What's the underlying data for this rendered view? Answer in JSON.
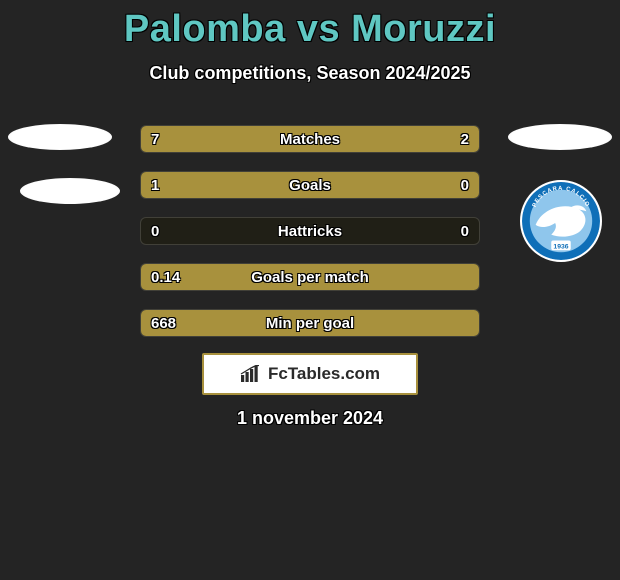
{
  "title": "Palomba vs Moruzzi",
  "subtitle": "Club competitions, Season 2024/2025",
  "date": "1 november 2024",
  "colors": {
    "accent": "#5fc7c2",
    "left_fill": "#a8913d",
    "right_fill": "#a8913d",
    "bar_bg": "#201f16",
    "brand_border": "#a8913d"
  },
  "brand": {
    "text": "FcTables.com",
    "icon_name": "barchart-icon"
  },
  "clubs": {
    "right_crest": {
      "name": "Pescara Calcio",
      "text_top": "PESCARA CALCIO",
      "primary": "#0f6fb8",
      "secondary": "#8fc6ec",
      "year": "1936"
    }
  },
  "stats": [
    {
      "label": "Matches",
      "left_val": "7",
      "right_val": "2",
      "left_pct": 76.5,
      "right_pct": 23.5
    },
    {
      "label": "Goals",
      "left_val": "1",
      "right_val": "0",
      "left_pct": 79,
      "right_pct": 21
    },
    {
      "label": "Hattricks",
      "left_val": "0",
      "right_val": "0",
      "left_pct": 0,
      "right_pct": 0
    },
    {
      "label": "Goals per match",
      "left_val": "0.14",
      "right_val": "",
      "left_pct": 100,
      "right_pct": 0
    },
    {
      "label": "Min per goal",
      "left_val": "668",
      "right_val": "",
      "left_pct": 100,
      "right_pct": 0
    }
  ]
}
